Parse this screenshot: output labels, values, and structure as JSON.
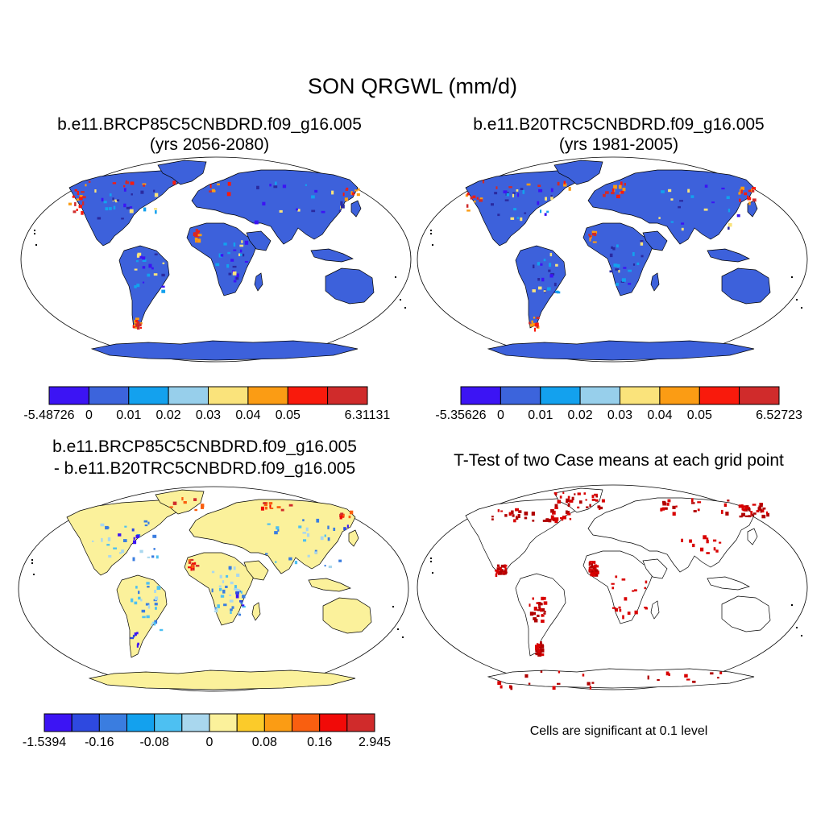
{
  "title": "SON QRGWL (mm/d)",
  "panels": [
    {
      "id": "p1",
      "title_line1": "b.e11.BRCP85C5CNBDRD.f09_g16.005",
      "title_line2": "(yrs 2056-2080)",
      "fill_color": "#3d61db",
      "colorbar": {
        "colors": [
          "#3c14f4",
          "#3c64dc",
          "#13a1ee",
          "#97cfeb",
          "#fae37b",
          "#fb9c14",
          "#f91a0c",
          "#d02b2b"
        ],
        "labels": [
          "-5.48726",
          "0",
          "0.01",
          "0.02",
          "0.03",
          "0.04",
          "0.05",
          "6.31131"
        ]
      }
    },
    {
      "id": "p2",
      "title_line1": "b.e11.B20TRC5CNBDRD.f09_g16.005",
      "title_line2": "(yrs 1981-2005)",
      "fill_color": "#3d61db",
      "colorbar": {
        "colors": [
          "#3c14f4",
          "#3c64dc",
          "#13a1ee",
          "#97cfeb",
          "#fae37b",
          "#fb9c14",
          "#f91a0c",
          "#d02b2b"
        ],
        "labels": [
          "-5.35626",
          "0",
          "0.01",
          "0.02",
          "0.03",
          "0.04",
          "0.05",
          "6.52723"
        ]
      }
    },
    {
      "id": "p3",
      "title_line1": "b.e11.BRCP85C5CNBDRD.f09_g16.005",
      "title_line2": "- b.e11.B20TRC5CNBDRD.f09_g16.005",
      "fill_color": "#fbf19b",
      "colorbar": {
        "colors": [
          "#3c14f4",
          "#2e49e0",
          "#3a7de0",
          "#13a1ee",
          "#4dc0f2",
          "#a9d7ee",
          "#fbf19b",
          "#fbcb2a",
          "#fb9c14",
          "#f95f10",
          "#f10a08",
          "#d02b2b"
        ],
        "labels": [
          "-1.5394",
          "-0.16",
          "-0.08",
          "0",
          "0.08",
          "0.16",
          "2.945"
        ]
      }
    },
    {
      "id": "p4",
      "title_line1": "T-Test of two Case means at each grid point",
      "fill_color": "#ffffff",
      "note": "Cells are significant at 0.1 level"
    }
  ],
  "colors": {
    "significant": "#d80000",
    "coastline": "#000000"
  }
}
